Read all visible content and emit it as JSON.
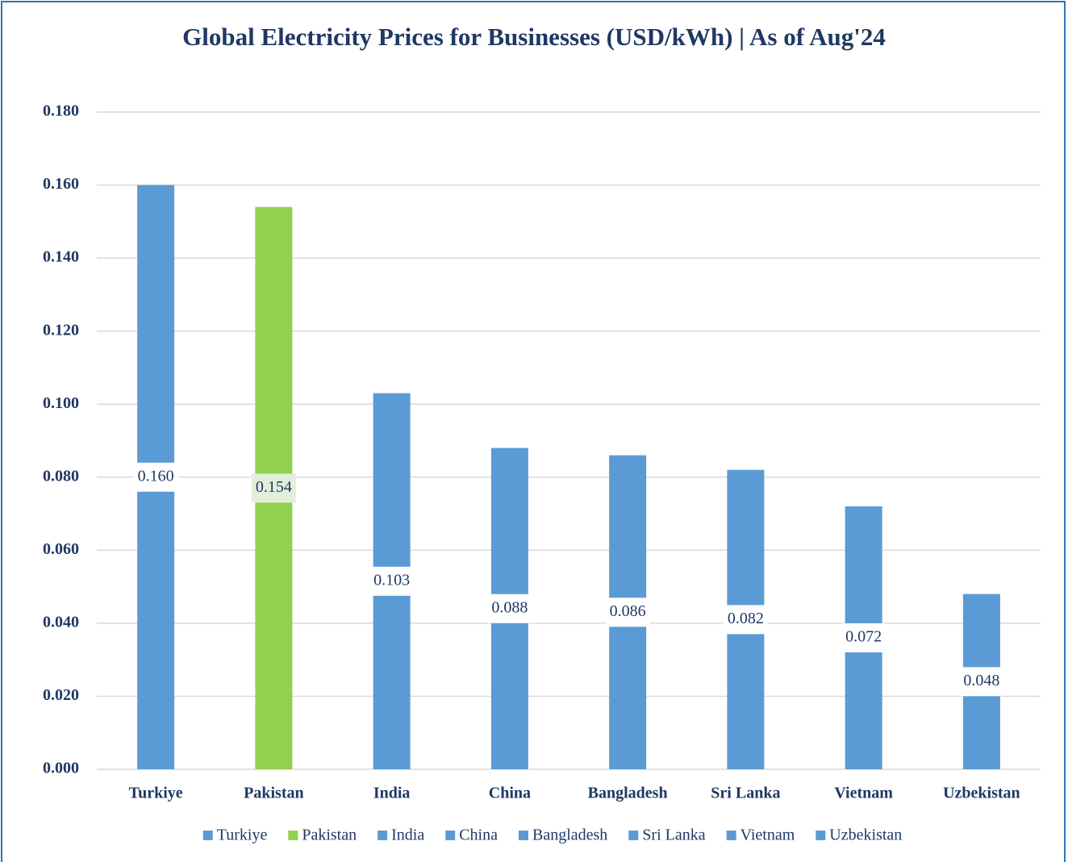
{
  "chart_data": {
    "type": "bar",
    "title": "Global Electricity Prices for Businesses (USD/kWh) | As of Aug'24",
    "categories": [
      "Turkiye",
      "Pakistan",
      "India",
      "China",
      "Bangladesh",
      "Sri Lanka",
      "Vietnam",
      "Uzbekistan"
    ],
    "values": [
      0.16,
      0.154,
      0.103,
      0.088,
      0.086,
      0.082,
      0.072,
      0.048
    ],
    "value_labels": [
      "0.160",
      "0.154",
      "0.103",
      "0.088",
      "0.086",
      "0.082",
      "0.072",
      "0.048"
    ],
    "colors": [
      "#5b9bd5",
      "#92d050",
      "#5b9bd5",
      "#5b9bd5",
      "#5b9bd5",
      "#5b9bd5",
      "#5b9bd5",
      "#5b9bd5"
    ],
    "ylim": [
      0,
      0.18
    ],
    "yticks": [
      {
        "value": 0,
        "label": "0.000"
      },
      {
        "value": 0.02,
        "label": "0.020"
      },
      {
        "value": 0.04,
        "label": "0.040"
      },
      {
        "value": 0.06,
        "label": "0.060"
      },
      {
        "value": 0.08,
        "label": "0.080"
      },
      {
        "value": 0.1,
        "label": "0.100"
      },
      {
        "value": 0.12,
        "label": "0.120"
      },
      {
        "value": 0.14,
        "label": "0.140"
      },
      {
        "value": 0.16,
        "label": "0.160"
      },
      {
        "value": 0.18,
        "label": "0.180"
      }
    ],
    "grid": true,
    "legend": "bottom"
  }
}
